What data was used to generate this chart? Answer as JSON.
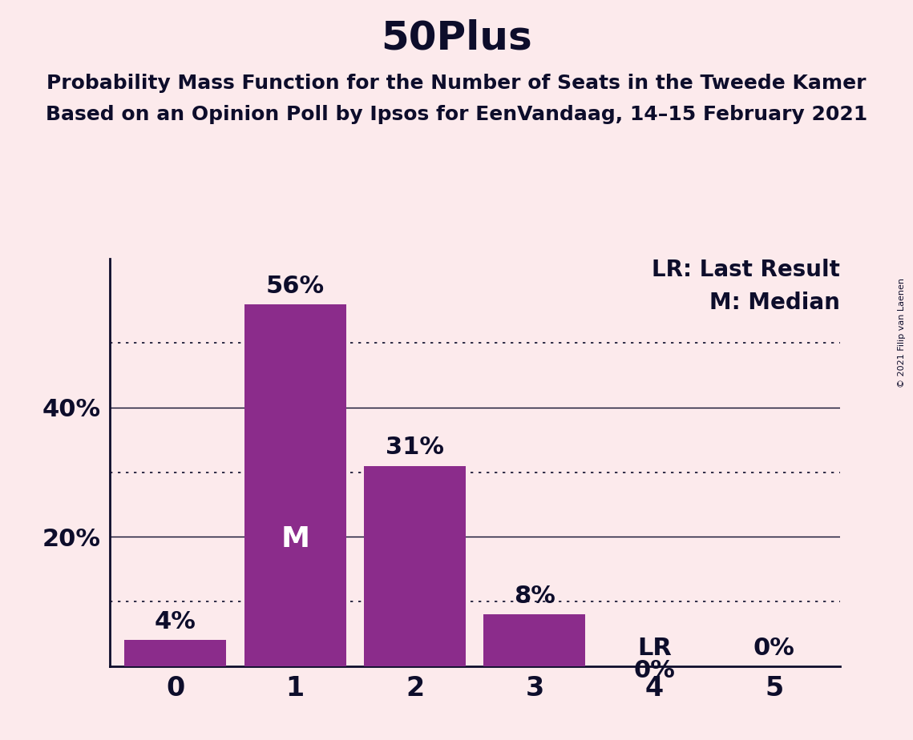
{
  "title": "50Plus",
  "subtitle1": "Probability Mass Function for the Number of Seats in the Tweede Kamer",
  "subtitle2": "Based on an Opinion Poll by Ipsos for EenVandaag, 14–15 February 2021",
  "categories": [
    0,
    1,
    2,
    3,
    4,
    5
  ],
  "values": [
    0.04,
    0.56,
    0.31,
    0.08,
    0.0,
    0.0
  ],
  "bar_color": "#8B2C8B",
  "background_color": "#FCEAEC",
  "bar_labels": [
    "4%",
    "56%",
    "31%",
    "8%",
    "0%",
    "0%"
  ],
  "median_bar": 1,
  "last_result_bar": 4,
  "grid_ticks_dotted": [
    0.1,
    0.3,
    0.5
  ],
  "grid_ticks_solid": [
    0.2,
    0.4
  ],
  "ytick_positions": [
    0.2,
    0.4
  ],
  "ytick_labels": [
    "20%",
    "40%"
  ],
  "annotation_lr_text": "LR: Last Result",
  "annotation_m_text": "M: Median",
  "copyright_text": "© 2021 Filip van Laenen",
  "title_fontsize": 36,
  "subtitle_fontsize": 18,
  "axis_tick_fontsize": 24,
  "bar_label_fontsize": 22,
  "ytick_fontsize": 22,
  "legend_fontsize": 20,
  "ylim_max": 0.63
}
